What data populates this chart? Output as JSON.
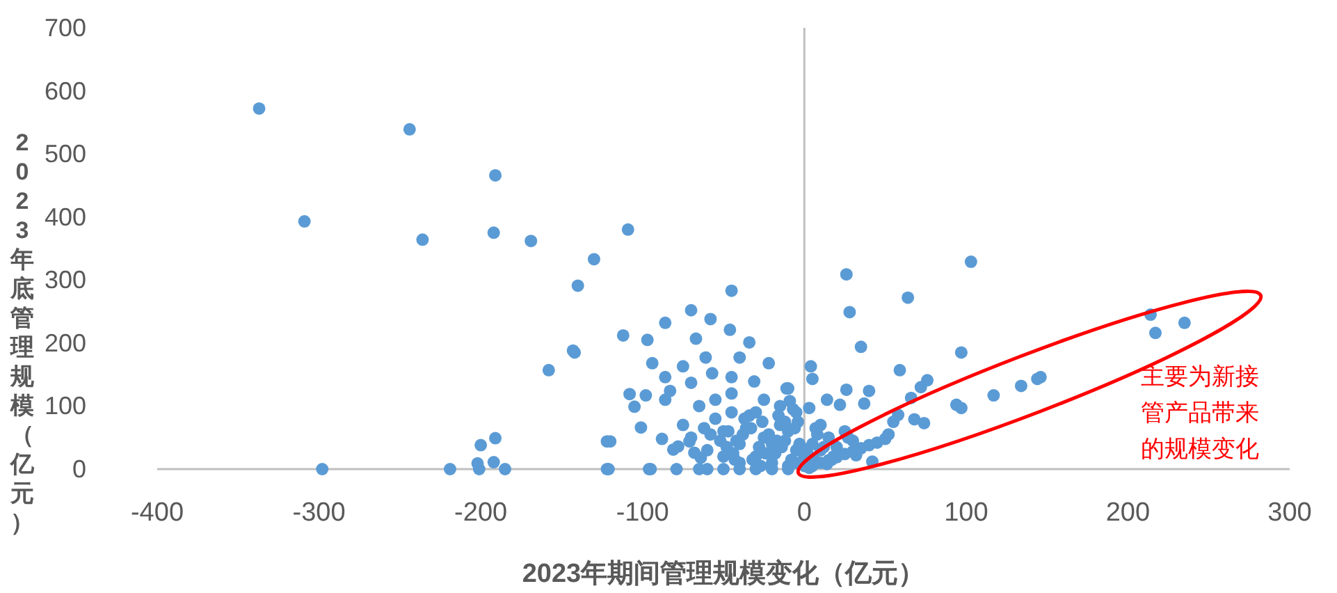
{
  "chart_data": {
    "type": "scatter",
    "xlabel": "2023年期间管理规模变化（亿元）",
    "ylabel": "2023年底管理规模（亿元）",
    "annotations": [
      "主要为新接管产品带来的规模变化"
    ],
    "xlim": [
      -400,
      300
    ],
    "ylim": [
      0,
      700
    ],
    "xticks": [
      -400,
      -300,
      -200,
      -100,
      0,
      100,
      200,
      300
    ],
    "yticks": [
      0,
      100,
      200,
      300,
      400,
      500,
      600,
      700
    ],
    "marker": "circle",
    "series": [
      {
        "color": "#5b9bd5",
        "x": [
          -337,
          -244,
          -191,
          -309,
          -236,
          -192,
          -169,
          -130,
          -109,
          -140,
          -142,
          -158,
          -298,
          -219,
          -200,
          -191,
          -192,
          -185,
          -201,
          -202,
          -122,
          -122,
          -95,
          -45,
          -70,
          -58,
          -86,
          -112,
          -46,
          -97,
          -34,
          -143,
          -40,
          -22,
          -94,
          -75,
          -67,
          -61,
          -57,
          -86,
          -45,
          -108,
          -98,
          -105,
          -86,
          -83,
          -101,
          -120,
          -81,
          -71,
          -10,
          -9,
          -31,
          -70,
          -121,
          -96,
          -79,
          -65,
          26,
          103,
          64,
          28,
          35,
          97,
          59,
          76,
          72,
          66,
          40,
          26,
          14,
          4,
          5,
          -11,
          3,
          22,
          37,
          94,
          97,
          117,
          134,
          144,
          146,
          214,
          217,
          235,
          68,
          74,
          58,
          55,
          52,
          5,
          10,
          15,
          20,
          25,
          30,
          35,
          40,
          45,
          50,
          -50,
          -40,
          -30,
          -20,
          -10,
          -5,
          -25,
          -45,
          -55,
          -15,
          -20,
          -10,
          -60,
          -50,
          -40,
          -30,
          -20,
          -10,
          0,
          5,
          10,
          15,
          20,
          25,
          30,
          10,
          -5,
          -15,
          -25,
          -30,
          -45,
          -55,
          -65,
          -75,
          -70,
          -60,
          -50,
          -40,
          -5,
          0,
          3,
          -52,
          -48,
          -44,
          -38,
          -36,
          -32,
          -28,
          -26,
          -22,
          -18,
          -16,
          -12,
          -8,
          -6,
          -2,
          2,
          6,
          8,
          12,
          14,
          18,
          -58,
          -62,
          -42,
          -34,
          -24,
          -14,
          -4,
          -27,
          -17,
          -7,
          -33,
          -43,
          -37,
          -47,
          -12,
          -3,
          7,
          17,
          27,
          32,
          42,
          -64,
          -68,
          -78,
          -88
        ],
        "values": [
          572,
          539,
          466,
          393,
          364,
          375,
          362,
          333,
          380,
          291,
          185,
          157,
          0,
          0,
          38,
          49,
          11,
          0,
          0,
          9,
          44,
          0,
          0,
          283,
          252,
          238,
          232,
          212,
          221,
          205,
          201,
          188,
          177,
          168,
          168,
          163,
          207,
          177,
          152,
          146,
          146,
          119,
          117,
          99,
          110,
          124,
          66,
          44,
          31,
          44,
          128,
          108,
          139,
          137,
          0,
          0,
          0,
          0,
          309,
          329,
          272,
          249,
          194,
          185,
          157,
          141,
          130,
          113,
          124,
          126,
          110,
          163,
          143,
          128,
          97,
          102,
          104,
          102,
          97,
          117,
          132,
          143,
          146,
          245,
          216,
          232,
          79,
          73,
          86,
          75,
          55,
          5,
          10,
          14,
          19,
          24,
          28,
          33,
          38,
          42,
          48,
          60,
          40,
          20,
          10,
          5,
          30,
          50,
          90,
          80,
          70,
          40,
          60,
          30,
          20,
          10,
          0,
          0,
          0,
          20,
          40,
          30,
          50,
          35,
          60,
          45,
          70,
          90,
          100,
          110,
          90,
          120,
          110,
          100,
          70,
          50,
          0,
          0,
          0,
          10,
          5,
          2,
          45,
          35,
          25,
          55,
          65,
          15,
          35,
          75,
          55,
          25,
          85,
          45,
          15,
          65,
          35,
          25,
          15,
          55,
          35,
          8,
          20,
          55,
          65,
          45,
          85,
          25,
          35,
          75,
          5,
          45,
          95,
          65,
          15,
          80,
          60,
          75,
          40,
          65,
          15,
          50,
          22,
          12,
          18,
          26,
          36,
          48
        ]
      }
    ]
  }
}
